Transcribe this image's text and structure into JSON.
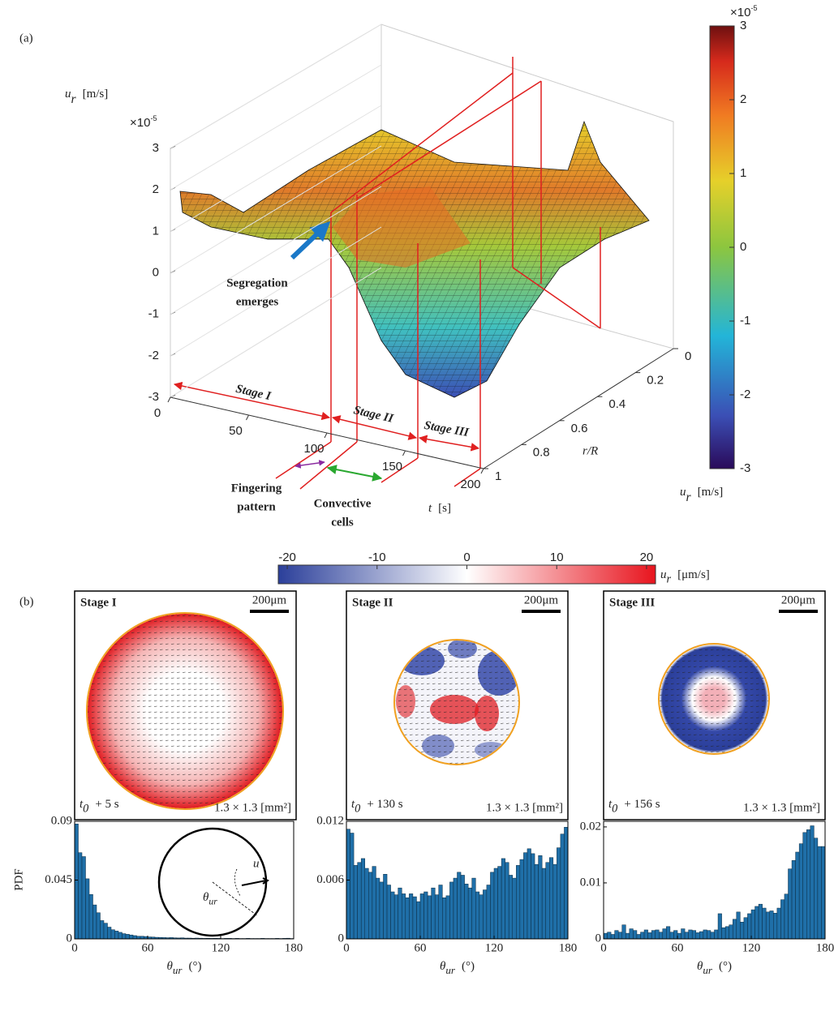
{
  "chart_data": [
    {
      "type": "surface",
      "panel_label": "(a)",
      "zlabel": {
        "symbol": "u",
        "subscript": "r",
        "unit": "[m/s]"
      },
      "z_exponent": {
        "base": "×10",
        "exponent": "-5"
      },
      "zlim": [
        -3,
        3
      ],
      "zticks": [
        -3,
        -2,
        -1,
        0,
        1,
        2,
        3
      ],
      "xlabel": {
        "symbol": "t",
        "unit": "[s]"
      },
      "xlim": [
        0,
        200
      ],
      "xticks": [
        0,
        50,
        100,
        150,
        200
      ],
      "ylabel": "r/R",
      "ylim": [
        0,
        1
      ],
      "yticks": [
        0,
        0.2,
        0.4,
        0.6,
        0.8,
        1
      ],
      "annotations": {
        "segregation": [
          "Segregation",
          "emerges"
        ],
        "stage_1": "Stage I",
        "stage_2": "Stage II",
        "stage_3": "Stage III",
        "fingering": [
          "Fingering",
          "pattern"
        ],
        "convective": [
          "Convective",
          "cells"
        ]
      }
    },
    {
      "type": "colorbar",
      "orientation": "vertical",
      "colormap": "jet",
      "clim": [
        -3,
        3
      ],
      "ticks": [
        -3,
        -2,
        -1,
        0,
        1,
        2,
        3
      ],
      "exponent": {
        "base": "×10",
        "exponent": "-5"
      },
      "label": {
        "symbol": "u",
        "subscript": "r",
        "unit": "[m/s]"
      }
    },
    {
      "type": "colorbar",
      "orientation": "horizontal",
      "colormap": "blue-white-red",
      "clim": [
        -21,
        21
      ],
      "ticks": [
        -20,
        -10,
        0,
        10,
        20
      ],
      "label": {
        "symbol": "u",
        "subscript": "r",
        "unit": "[μm/s]"
      },
      "panel_label": "(b)"
    },
    {
      "type": "image",
      "panels": [
        {
          "stage": "Stage I",
          "scale_bar": "200μm",
          "time": {
            "symbol": "t",
            "subscript": "0",
            "rest": "+ 5 s"
          },
          "area": "1.3 × 1.3 [mm²]"
        },
        {
          "stage": "Stage II",
          "scale_bar": "200μm",
          "time": {
            "symbol": "t",
            "subscript": "0",
            "rest": "+ 130 s"
          },
          "area": "1.3 × 1.3 [mm²]"
        },
        {
          "stage": "Stage III",
          "scale_bar": "200μm",
          "time": {
            "symbol": "t",
            "subscript": "0",
            "rest": "+ 156 s"
          },
          "area": "1.3 × 1.3 [mm²]"
        }
      ]
    },
    {
      "type": "histogram",
      "ylabel": "PDF",
      "xlabel": {
        "symbol": "θ",
        "subscript": "ur",
        "unit": "(°)"
      },
      "inset": {
        "vector": "u⃗",
        "angle": {
          "symbol": "θ",
          "subscript": "ur"
        }
      },
      "color": "#1f6fa8",
      "xlim": [
        0,
        180
      ],
      "xticks": [
        0,
        60,
        120,
        180
      ],
      "ylim": [
        0,
        0.09
      ],
      "yticks": [
        0,
        0.045,
        0.09
      ],
      "bins": [
        0,
        3,
        6,
        9,
        12,
        15,
        18,
        21,
        24,
        27,
        30,
        33,
        36,
        39,
        42,
        45,
        48,
        51,
        54,
        57,
        60,
        63,
        66,
        69,
        72,
        75,
        78,
        81,
        84,
        87,
        90,
        93,
        96,
        99,
        102,
        105,
        108,
        111,
        114,
        117,
        120,
        123,
        126,
        129,
        132,
        135,
        138,
        141,
        144,
        147,
        150,
        153,
        156,
        159,
        162,
        165,
        168,
        171,
        174,
        177,
        180
      ],
      "values": [
        0.088,
        0.066,
        0.063,
        0.046,
        0.034,
        0.026,
        0.02,
        0.014,
        0.012,
        0.009,
        0.007,
        0.006,
        0.005,
        0.004,
        0.0035,
        0.003,
        0.0025,
        0.002,
        0.002,
        0.0018,
        0.0015,
        0.0014,
        0.0012,
        0.0011,
        0.001,
        0.0009,
        0.001,
        0.0008,
        0.0007,
        0.0008,
        0.0006,
        0.0006,
        0.0005,
        0.0006,
        0.0005,
        0.0004,
        0.0005,
        0.0004,
        0.0005,
        0.0004,
        0.0003,
        0.0004,
        0.0004,
        0.0003,
        0.0004,
        0.0003,
        0.0003,
        0.0004,
        0.0003,
        0.0003,
        0.0003,
        0.0004,
        0.0003,
        0.0003,
        0.0003,
        0.0004,
        0.0003,
        0.0004,
        0.0005,
        0.0003
      ]
    },
    {
      "type": "histogram",
      "xlabel": {
        "symbol": "θ",
        "subscript": "ur",
        "unit": "(°)"
      },
      "color": "#1f6fa8",
      "xlim": [
        0,
        180
      ],
      "xticks": [
        0,
        60,
        120,
        180
      ],
      "ylim": [
        0,
        0.012
      ],
      "yticks": [
        0,
        0.006,
        0.012
      ],
      "bins": [
        0,
        3,
        6,
        9,
        12,
        15,
        18,
        21,
        24,
        27,
        30,
        33,
        36,
        39,
        42,
        45,
        48,
        51,
        54,
        57,
        60,
        63,
        66,
        69,
        72,
        75,
        78,
        81,
        84,
        87,
        90,
        93,
        96,
        99,
        102,
        105,
        108,
        111,
        114,
        117,
        120,
        123,
        126,
        129,
        132,
        135,
        138,
        141,
        144,
        147,
        150,
        153,
        156,
        159,
        162,
        165,
        168,
        171,
        174,
        177,
        180
      ],
      "values": [
        0.0112,
        0.0108,
        0.0075,
        0.0078,
        0.0082,
        0.0072,
        0.0068,
        0.0074,
        0.0062,
        0.0058,
        0.0066,
        0.0055,
        0.0048,
        0.0045,
        0.0052,
        0.0046,
        0.0042,
        0.0046,
        0.0043,
        0.0038,
        0.0046,
        0.0048,
        0.0044,
        0.0052,
        0.0045,
        0.0055,
        0.0042,
        0.0044,
        0.0058,
        0.0062,
        0.0068,
        0.0065,
        0.0056,
        0.0052,
        0.0062,
        0.0048,
        0.0045,
        0.005,
        0.0055,
        0.0068,
        0.0072,
        0.0074,
        0.0082,
        0.0078,
        0.0065,
        0.0062,
        0.0075,
        0.0081,
        0.0088,
        0.0092,
        0.0087,
        0.0076,
        0.0085,
        0.0072,
        0.0078,
        0.0083,
        0.0076,
        0.0093,
        0.0107,
        0.0114
      ]
    },
    {
      "type": "histogram",
      "xlabel": {
        "symbol": "θ",
        "subscript": "ur",
        "unit": "(°)"
      },
      "color": "#1f6fa8",
      "xlim": [
        0,
        180
      ],
      "xticks": [
        0,
        60,
        120,
        180
      ],
      "ylim": [
        0,
        0.021
      ],
      "yticks": [
        0,
        0.01,
        0.02
      ],
      "bins": [
        0,
        3,
        6,
        9,
        12,
        15,
        18,
        21,
        24,
        27,
        30,
        33,
        36,
        39,
        42,
        45,
        48,
        51,
        54,
        57,
        60,
        63,
        66,
        69,
        72,
        75,
        78,
        81,
        84,
        87,
        90,
        93,
        96,
        99,
        102,
        105,
        108,
        111,
        114,
        117,
        120,
        123,
        126,
        129,
        132,
        135,
        138,
        141,
        144,
        147,
        150,
        153,
        156,
        159,
        162,
        165,
        168,
        171,
        174,
        177,
        180
      ],
      "values": [
        0.001,
        0.0012,
        0.0008,
        0.0015,
        0.0012,
        0.0025,
        0.001,
        0.0018,
        0.0015,
        0.0008,
        0.0012,
        0.0016,
        0.0011,
        0.0015,
        0.0016,
        0.0012,
        0.0018,
        0.0022,
        0.0012,
        0.0015,
        0.001,
        0.0018,
        0.0012,
        0.0016,
        0.0015,
        0.0011,
        0.0013,
        0.0016,
        0.0015,
        0.0012,
        0.0016,
        0.0045,
        0.002,
        0.0022,
        0.0025,
        0.0035,
        0.0048,
        0.003,
        0.0038,
        0.0045,
        0.0052,
        0.0058,
        0.0062,
        0.0055,
        0.0048,
        0.005,
        0.0046,
        0.0055,
        0.007,
        0.008,
        0.0125,
        0.014,
        0.0155,
        0.017,
        0.019,
        0.0195,
        0.0202,
        0.018,
        0.0165,
        0.0165
      ]
    }
  ]
}
